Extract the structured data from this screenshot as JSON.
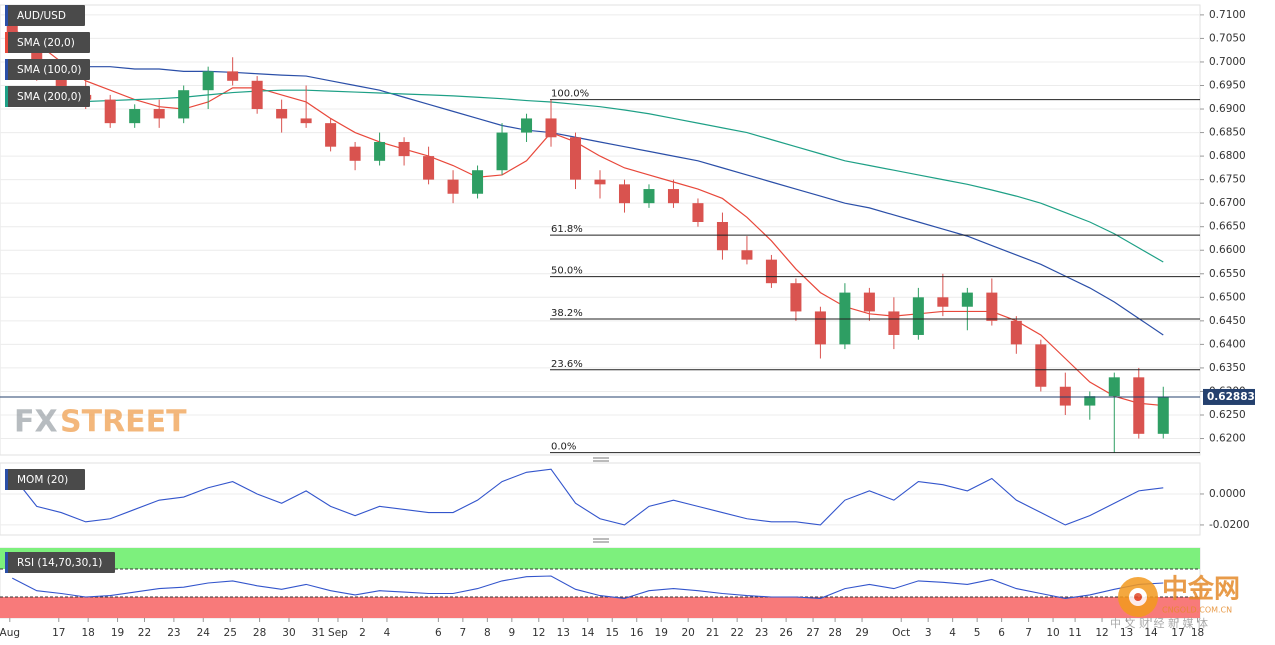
{
  "chart_data": [
    {
      "type": "candlestick",
      "title": "AUD/USD",
      "up_color": "#2e9e63",
      "down_color": "#d9534f",
      "open": [
        0.708,
        0.703,
        0.697,
        0.693,
        0.692,
        0.687,
        0.69,
        0.688,
        0.694,
        0.698,
        0.696,
        0.69,
        0.688,
        0.687,
        0.682,
        0.679,
        0.683,
        0.68,
        0.675,
        0.672,
        0.677,
        0.685,
        0.688,
        0.684,
        0.675,
        0.674,
        0.67,
        0.673,
        0.67,
        0.666,
        0.66,
        0.658,
        0.653,
        0.647,
        0.64,
        0.651,
        0.647,
        0.642,
        0.65,
        0.648,
        0.651,
        0.645,
        0.64,
        0.631,
        0.627,
        0.629,
        0.633,
        0.621
      ],
      "high": [
        0.71,
        0.705,
        0.699,
        0.696,
        0.693,
        0.691,
        0.692,
        0.695,
        0.699,
        0.701,
        0.697,
        0.692,
        0.695,
        0.688,
        0.683,
        0.685,
        0.684,
        0.682,
        0.677,
        0.678,
        0.687,
        0.689,
        0.692,
        0.685,
        0.677,
        0.675,
        0.674,
        0.675,
        0.671,
        0.668,
        0.663,
        0.659,
        0.654,
        0.648,
        0.653,
        0.652,
        0.65,
        0.652,
        0.655,
        0.652,
        0.654,
        0.646,
        0.641,
        0.634,
        0.63,
        0.634,
        0.635,
        0.631
      ],
      "low": [
        0.702,
        0.696,
        0.691,
        0.69,
        0.686,
        0.686,
        0.686,
        0.687,
        0.69,
        0.695,
        0.689,
        0.685,
        0.686,
        0.681,
        0.677,
        0.678,
        0.678,
        0.674,
        0.67,
        0.671,
        0.676,
        0.683,
        0.682,
        0.673,
        0.671,
        0.668,
        0.669,
        0.669,
        0.665,
        0.658,
        0.657,
        0.652,
        0.645,
        0.637,
        0.639,
        0.645,
        0.639,
        0.641,
        0.646,
        0.643,
        0.644,
        0.638,
        0.63,
        0.625,
        0.624,
        0.617,
        0.62,
        0.62
      ],
      "close": [
        0.703,
        0.697,
        0.693,
        0.692,
        0.687,
        0.69,
        0.688,
        0.694,
        0.698,
        0.696,
        0.69,
        0.688,
        0.687,
        0.682,
        0.679,
        0.683,
        0.68,
        0.675,
        0.672,
        0.677,
        0.685,
        0.688,
        0.684,
        0.675,
        0.674,
        0.67,
        0.673,
        0.67,
        0.666,
        0.66,
        0.658,
        0.653,
        0.647,
        0.64,
        0.651,
        0.647,
        0.642,
        0.65,
        0.648,
        0.651,
        0.645,
        0.64,
        0.631,
        0.627,
        0.629,
        0.633,
        0.621,
        0.62883
      ],
      "series": [
        {
          "name": "SMA (20,0)",
          "color": "#e8483b",
          "values": [
            0.707,
            0.704,
            0.7,
            0.696,
            0.694,
            0.692,
            0.6905,
            0.69,
            0.6915,
            0.6945,
            0.6945,
            0.693,
            0.6915,
            0.688,
            0.685,
            0.683,
            0.6815,
            0.68,
            0.678,
            0.6755,
            0.676,
            0.679,
            0.685,
            0.683,
            0.68,
            0.6775,
            0.676,
            0.6745,
            0.673,
            0.671,
            0.667,
            0.662,
            0.656,
            0.651,
            0.648,
            0.6465,
            0.646,
            0.6465,
            0.647,
            0.647,
            0.647,
            0.645,
            0.642,
            0.637,
            0.632,
            0.629,
            0.6275,
            0.627
          ]
        },
        {
          "name": "SMA (100,0)",
          "color": "#2b4fa8",
          "values": [
            0.7,
            0.7,
            0.6995,
            0.699,
            0.699,
            0.6985,
            0.6985,
            0.698,
            0.698,
            0.6978,
            0.6975,
            0.6972,
            0.697,
            0.696,
            0.695,
            0.694,
            0.6925,
            0.691,
            0.6895,
            0.688,
            0.6865,
            0.6855,
            0.685,
            0.684,
            0.683,
            0.682,
            0.681,
            0.68,
            0.679,
            0.6775,
            0.676,
            0.6745,
            0.673,
            0.6715,
            0.67,
            0.669,
            0.6675,
            0.666,
            0.6645,
            0.663,
            0.661,
            0.659,
            0.657,
            0.6545,
            0.652,
            0.649,
            0.6455,
            0.642
          ]
        },
        {
          "name": "SMA (200,0)",
          "color": "#1ea086",
          "values": [
            0.691,
            0.6912,
            0.6914,
            0.6916,
            0.6918,
            0.692,
            0.6922,
            0.6925,
            0.693,
            0.6935,
            0.6938,
            0.694,
            0.694,
            0.6938,
            0.6936,
            0.6934,
            0.6932,
            0.693,
            0.6928,
            0.6925,
            0.6922,
            0.6918,
            0.6915,
            0.691,
            0.6905,
            0.6898,
            0.689,
            0.688,
            0.687,
            0.686,
            0.685,
            0.6835,
            0.682,
            0.6805,
            0.679,
            0.678,
            0.677,
            0.676,
            0.675,
            0.674,
            0.6728,
            0.6715,
            0.67,
            0.668,
            0.666,
            0.6635,
            0.6605,
            0.6575
          ]
        }
      ],
      "fib_levels": [
        {
          "label": "100.0%",
          "value": 0.692
        },
        {
          "label": "61.8%",
          "value": 0.6632
        },
        {
          "label": "50.0%",
          "value": 0.6544
        },
        {
          "label": "38.2%",
          "value": 0.6454
        },
        {
          "label": "23.6%",
          "value": 0.6346
        },
        {
          "label": "0.0%",
          "value": 0.617
        }
      ],
      "last_price": 0.62883,
      "last_price_color": "#24406e",
      "xlim": [
        -0.5,
        48.5
      ],
      "ylim": [
        0.6165,
        0.7121
      ],
      "yticks": [
        {
          "value": 0.62,
          "label": "0.6200"
        },
        {
          "value": 0.625,
          "label": "0.6250"
        },
        {
          "value": 0.63,
          "label": "0.6300"
        },
        {
          "value": 0.635,
          "label": "0.6350"
        },
        {
          "value": 0.64,
          "label": "0.6400"
        },
        {
          "value": 0.645,
          "label": "0.6450"
        },
        {
          "value": 0.65,
          "label": "0.6500"
        },
        {
          "value": 0.655,
          "label": "0.6550"
        },
        {
          "value": 0.66,
          "label": "0.6600"
        },
        {
          "value": 0.665,
          "label": "0.6650"
        },
        {
          "value": 0.67,
          "label": "0.6700"
        },
        {
          "value": 0.675,
          "label": "0.6750"
        },
        {
          "value": 0.68,
          "label": "0.6800"
        },
        {
          "value": 0.685,
          "label": "0.6850"
        },
        {
          "value": 0.69,
          "label": "0.6900"
        },
        {
          "value": 0.695,
          "label": "0.6950"
        },
        {
          "value": 0.7,
          "label": "0.7000"
        },
        {
          "value": 0.705,
          "label": "0.7050"
        },
        {
          "value": 0.71,
          "label": "0.7100"
        }
      ],
      "grid": true
    },
    {
      "type": "line",
      "title": "MOM (20)",
      "color": "#3355cc",
      "values": [
        0.012,
        -0.008,
        -0.012,
        -0.018,
        -0.016,
        -0.01,
        -0.004,
        -0.002,
        0.004,
        0.008,
        0.0,
        -0.006,
        0.002,
        -0.008,
        -0.014,
        -0.008,
        -0.01,
        -0.012,
        -0.012,
        -0.004,
        0.008,
        0.014,
        0.016,
        -0.006,
        -0.016,
        -0.02,
        -0.008,
        -0.004,
        -0.008,
        -0.012,
        -0.016,
        -0.018,
        -0.018,
        -0.02,
        -0.004,
        0.002,
        -0.004,
        0.008,
        0.006,
        0.002,
        0.01,
        -0.004,
        -0.012,
        -0.02,
        -0.014,
        -0.006,
        0.002,
        0.004
      ],
      "xlim": [
        -0.5,
        48.5
      ],
      "ylim": [
        -0.0265,
        0.02
      ],
      "yticks": [
        {
          "value": 0,
          "label": "0.0000"
        },
        {
          "value": -0.02,
          "label": "-0.0200"
        }
      ],
      "grid": true
    },
    {
      "type": "line",
      "title": "RSI (14,70,30,1)",
      "color": "#3355cc",
      "values": [
        57,
        39,
        35,
        30,
        32,
        37,
        42,
        44,
        50,
        53,
        46,
        41,
        48,
        39,
        33,
        39,
        37,
        35,
        35,
        42,
        53,
        59,
        60,
        41,
        32,
        28,
        39,
        42,
        39,
        35,
        32,
        30,
        30,
        28,
        42,
        48,
        42,
        53,
        51,
        48,
        55,
        42,
        35,
        28,
        33,
        41,
        48,
        50
      ],
      "levels": [
        70,
        30
      ],
      "overbought_color": "#7df07d",
      "oversold_color": "#f87a7a",
      "xlim": [
        -0.5,
        48.5
      ],
      "ylim": [
        0,
        100
      ],
      "xticks": [
        {
          "value": -0.1,
          "label": "Aug"
        },
        {
          "value": 1.9,
          "label": "17"
        },
        {
          "value": 3.1,
          "label": "18"
        },
        {
          "value": 4.3,
          "label": "19"
        },
        {
          "value": 5.4,
          "label": "22"
        },
        {
          "value": 6.6,
          "label": "23"
        },
        {
          "value": 7.8,
          "label": "24"
        },
        {
          "value": 8.9,
          "label": "25"
        },
        {
          "value": 10.1,
          "label": "28"
        },
        {
          "value": 11.3,
          "label": "30"
        },
        {
          "value": 12.5,
          "label": "31"
        },
        {
          "value": 13.3,
          "label": "Sep"
        },
        {
          "value": 14.3,
          "label": "2"
        },
        {
          "value": 15.3,
          "label": "4"
        },
        {
          "value": 17.4,
          "label": "6"
        },
        {
          "value": 18.4,
          "label": "7"
        },
        {
          "value": 19.4,
          "label": "8"
        },
        {
          "value": 20.4,
          "label": "9"
        },
        {
          "value": 21.5,
          "label": "12"
        },
        {
          "value": 22.5,
          "label": "13"
        },
        {
          "value": 23.5,
          "label": "14"
        },
        {
          "value": 24.5,
          "label": "15"
        },
        {
          "value": 25.5,
          "label": "16"
        },
        {
          "value": 26.5,
          "label": "19"
        },
        {
          "value": 27.6,
          "label": "20"
        },
        {
          "value": 28.6,
          "label": "21"
        },
        {
          "value": 29.6,
          "label": "22"
        },
        {
          "value": 30.6,
          "label": "23"
        },
        {
          "value": 31.6,
          "label": "26"
        },
        {
          "value": 32.7,
          "label": "27"
        },
        {
          "value": 33.6,
          "label": "28"
        },
        {
          "value": 34.7,
          "label": "29"
        },
        {
          "value": 36.3,
          "label": "Oct"
        },
        {
          "value": 37.4,
          "label": "3"
        },
        {
          "value": 38.4,
          "label": "4"
        },
        {
          "value": 39.4,
          "label": "5"
        },
        {
          "value": 40.4,
          "label": "6"
        },
        {
          "value": 41.5,
          "label": "7"
        },
        {
          "value": 42.5,
          "label": "10"
        },
        {
          "value": 43.4,
          "label": "11"
        },
        {
          "value": 44.5,
          "label": "12"
        },
        {
          "value": 45.5,
          "label": "13"
        },
        {
          "value": 46.5,
          "label": "14"
        },
        {
          "value": 47.6,
          "label": "17"
        },
        {
          "value": 48.4,
          "label": "18"
        }
      ]
    }
  ],
  "watermarks": {
    "brand_a": "FX",
    "brand_b": "STREET",
    "cn_title": "中金网",
    "cn_site": "CNGOLD.COM.CN",
    "cn_tag": "中 文 财 经 新 媒 体"
  }
}
